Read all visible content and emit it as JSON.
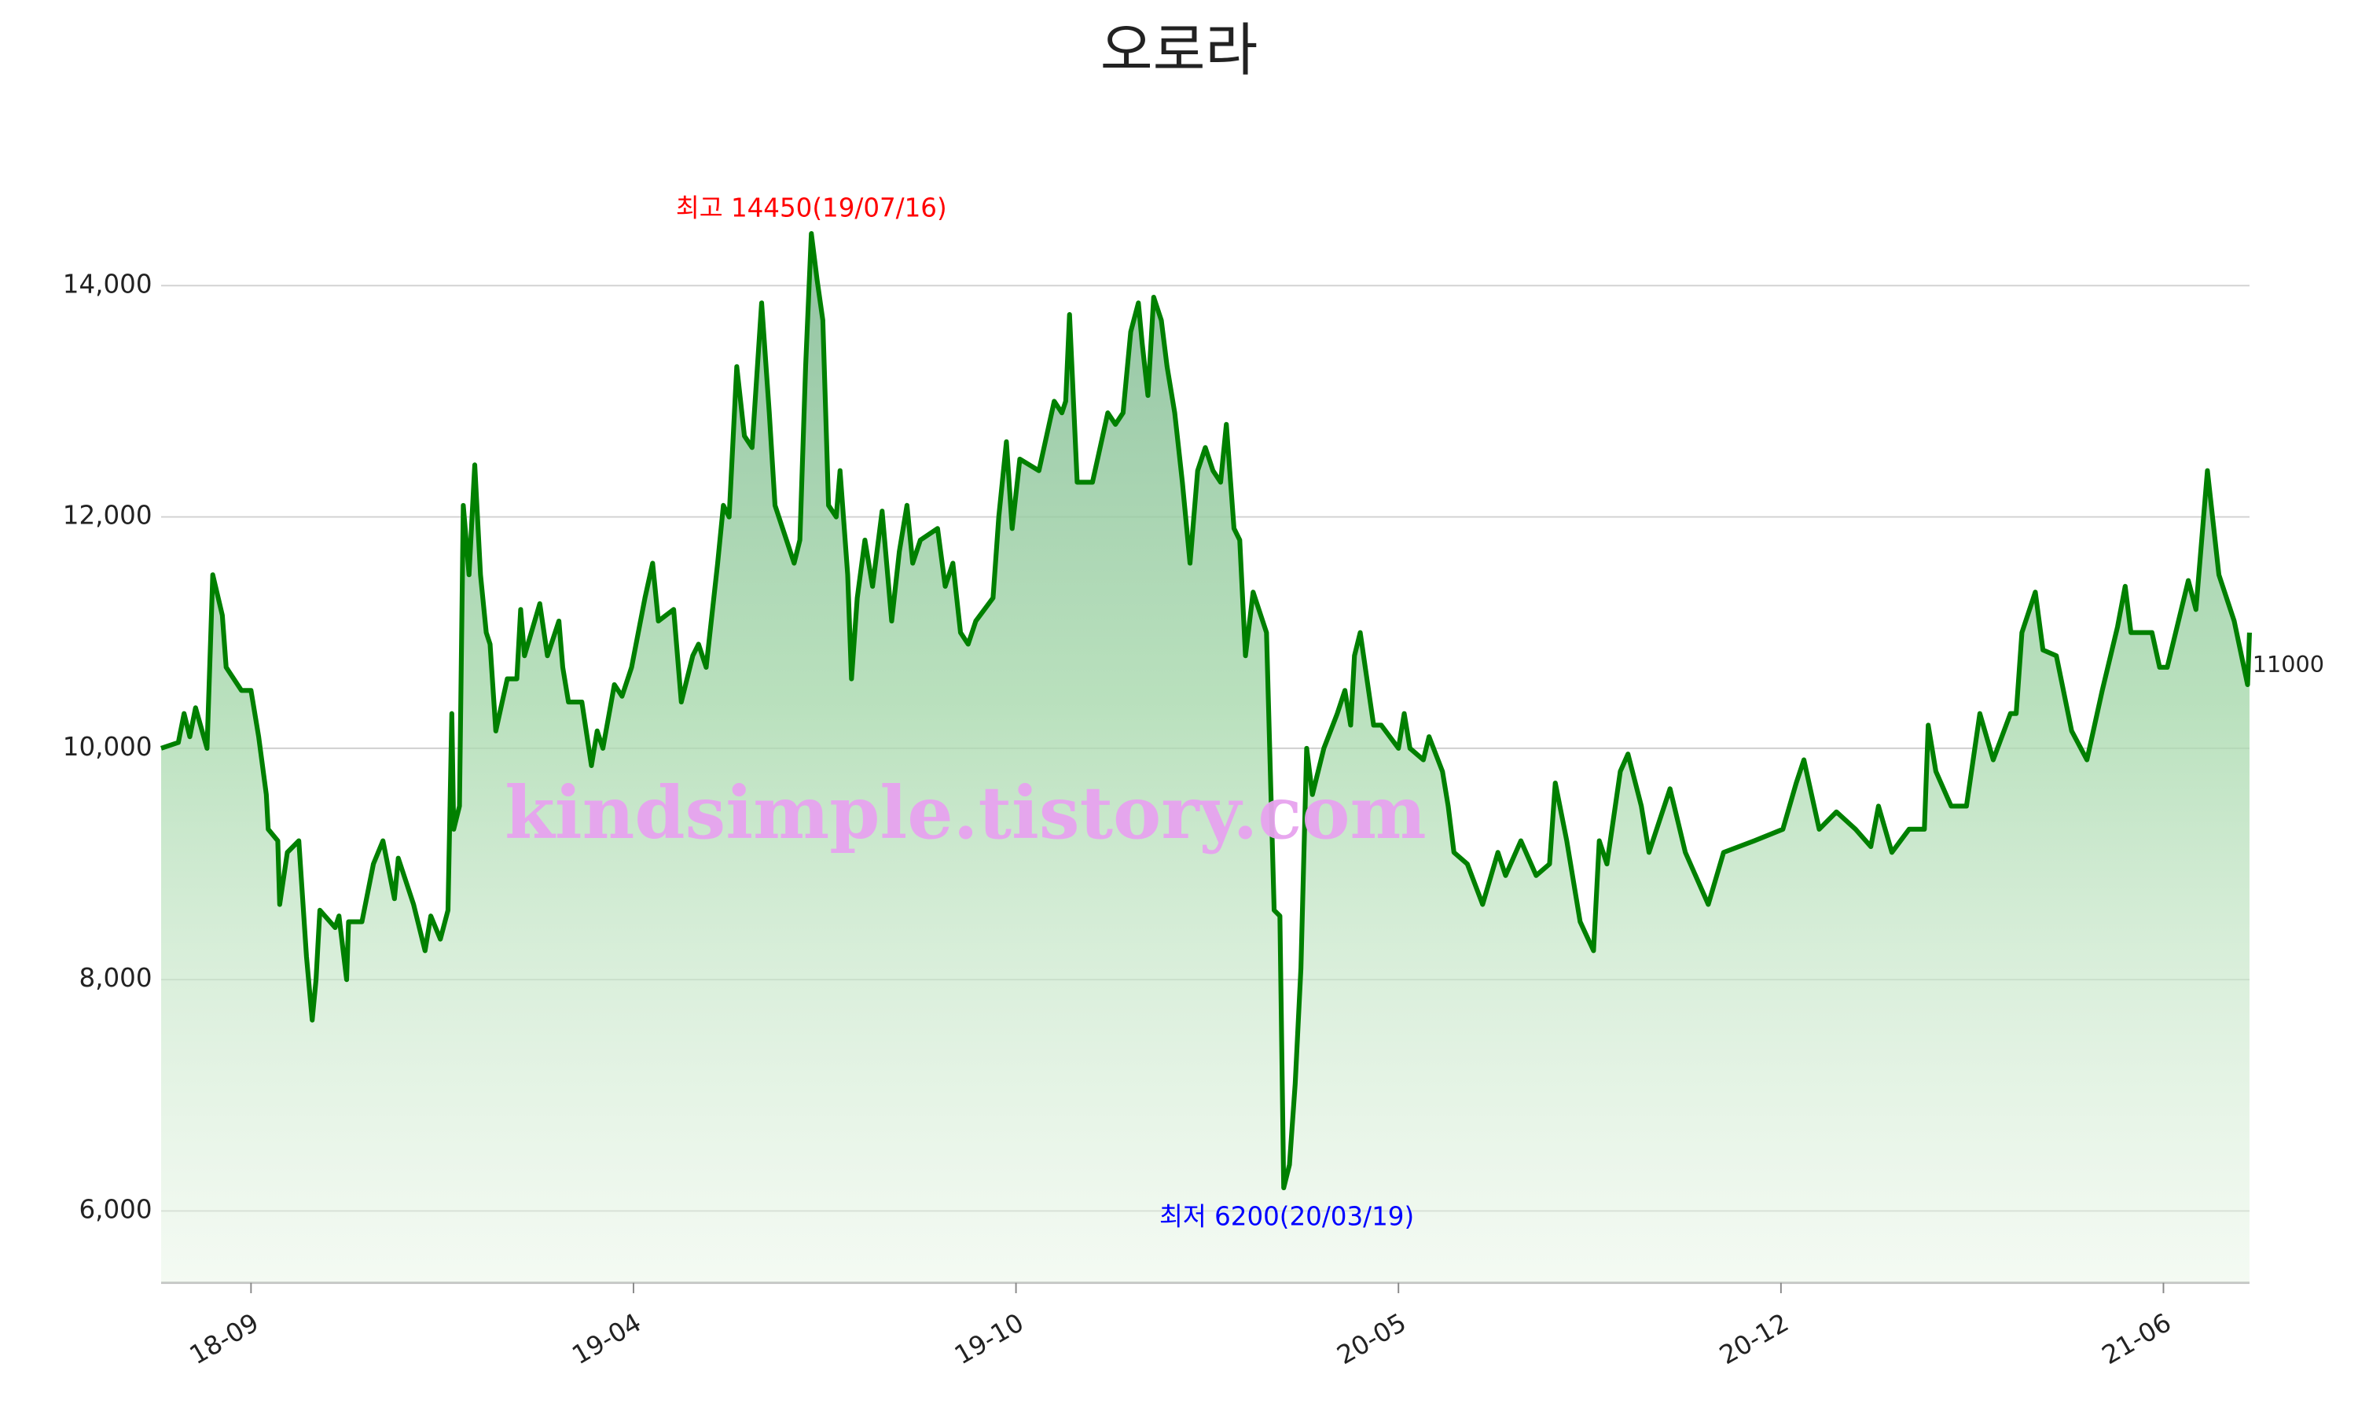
{
  "chart_data": {
    "type": "area",
    "title": "오로라",
    "watermark": "kindsimple.tistory.com",
    "grid": true,
    "annotations": {
      "high": {
        "text": "최고 14450(19/07/16)",
        "color": "#ff0000"
      },
      "low": {
        "text": "최저 6200(20/03/19)",
        "color": "#0000ff"
      }
    },
    "xlim": [
      221,
      1313
    ],
    "xticks": [
      {
        "value": 268,
        "label": "18-09"
      },
      {
        "value": 468,
        "label": "19-04"
      },
      {
        "value": 668,
        "label": "19-10"
      },
      {
        "value": 868,
        "label": "20-05"
      },
      {
        "value": 1068,
        "label": "20-12"
      },
      {
        "value": 1268,
        "label": "21-06"
      }
    ],
    "ylim": [
      5380,
      14870
    ],
    "yticks": [
      {
        "value": 6000,
        "label": "6,000"
      },
      {
        "value": 8000,
        "label": "8,000"
      },
      {
        "value": 10000,
        "label": "10,000"
      },
      {
        "value": 12000,
        "label": "12,000"
      },
      {
        "value": 14000,
        "label": "14,000"
      }
    ],
    "x": [
      221,
      230,
      233,
      236,
      239,
      245,
      248,
      253,
      255,
      263,
      268,
      272,
      276,
      277,
      282,
      283,
      287,
      293,
      295,
      297,
      300,
      302,
      304,
      312,
      314,
      318,
      319,
      326,
      332,
      337,
      343,
      345,
      353,
      359,
      362,
      367,
      371,
      373,
      374,
      377,
      379,
      382,
      385,
      388,
      391,
      393,
      396,
      402,
      407,
      409,
      411,
      419,
      423,
      429,
      431,
      434,
      441,
      446,
      449,
      452,
      458,
      462,
      467,
      474,
      478,
      481,
      489,
      493,
      499,
      502,
      506,
      512,
      515,
      518,
      522,
      526,
      530,
      532,
      535,
      539,
      542,
      548,
      552,
      555,
      558,
      561,
      564,
      567,
      570,
      574,
      576,
      580,
      582,
      585,
      589,
      593,
      598,
      603,
      607,
      611,
      614,
      618,
      627,
      631,
      635,
      639,
      643,
      647,
      656,
      659,
      663,
      666,
      670,
      680,
      688,
      692,
      694,
      696,
      700,
      708,
      716,
      720,
      724,
      728,
      732,
      734,
      737,
      740,
      744,
      747,
      751,
      755,
      759,
      763,
      767,
      771,
      775,
      778,
      782,
      785,
      788,
      792,
      799,
      803,
      806,
      808,
      811,
      814,
      817,
      820,
      823,
      829,
      836,
      840,
      843,
      845,
      848,
      855,
      859,
      868,
      871,
      874,
      881,
      884,
      891,
      894,
      897,
      904,
      912,
      920,
      924,
      932,
      940,
      947,
      950,
      956,
      963,
      970,
      973,
      977,
      984,
      988,
      995,
      999,
      1010,
      1018,
      1030,
      1038,
      1054,
      1069,
      1076,
      1080,
      1088,
      1097,
      1107,
      1115,
      1119,
      1126,
      1135,
      1143,
      1145,
      1149,
      1157,
      1165,
      1172,
      1179,
      1188,
      1191,
      1194,
      1201,
      1205,
      1212,
      1220,
      1228,
      1236,
      1244,
      1248,
      1251,
      1262,
      1266,
      1270,
      1281,
      1285,
      1291,
      1297,
      1305,
      1312,
      1313
    ],
    "series": [
      {
        "color": "#008000",
        "values": [
          10000,
          10050,
          10300,
          10100,
          10350,
          10000,
          11500,
          11150,
          10700,
          10500,
          10500,
          10100,
          9600,
          9300,
          9200,
          8650,
          9100,
          9200,
          8700,
          8200,
          7650,
          8000,
          8600,
          8450,
          8550,
          8000,
          8500,
          8500,
          9000,
          9200,
          8700,
          9050,
          8650,
          8250,
          8550,
          8350,
          8600,
          10300,
          9300,
          9500,
          12100,
          11500,
          12450,
          11500,
          11000,
          10900,
          10150,
          10600,
          10600,
          11200,
          10800,
          11250,
          10800,
          11100,
          10700,
          10400,
          10400,
          9850,
          10150,
          10000,
          10550,
          10450,
          10700,
          11300,
          11600,
          11100,
          11200,
          10400,
          10800,
          10900,
          10700,
          11600,
          12100,
          12000,
          13300,
          12700,
          12600,
          13100,
          13850,
          12900,
          12100,
          11800,
          11600,
          11800,
          13300,
          14450,
          14050,
          13700,
          12100,
          12000,
          12400,
          11500,
          10600,
          11300,
          11800,
          11400,
          12050,
          11100,
          11700,
          12100,
          11600,
          11800,
          11900,
          11400,
          11600,
          11000,
          10900,
          11100,
          11300,
          12000,
          12650,
          11900,
          12500,
          12400,
          13000,
          12900,
          13000,
          13750,
          12300,
          12300,
          12900,
          12800,
          12900,
          13600,
          13850,
          13500,
          13050,
          13900,
          13700,
          13300,
          12900,
          12300,
          11600,
          12400,
          12600,
          12400,
          12300,
          12800,
          11900,
          11800,
          10800,
          11350,
          11000,
          8600,
          8550,
          6200,
          6400,
          7100,
          8100,
          10000,
          9600,
          10000,
          10300,
          10500,
          10200,
          10800,
          11000,
          10200,
          10200,
          10000,
          10300,
          10000,
          9900,
          10100,
          9800,
          9500,
          9100,
          9000,
          8650,
          9100,
          8900,
          9200,
          8900,
          9000,
          9700,
          9200,
          8500,
          8250,
          9200,
          9000,
          9800,
          9950,
          9500,
          9100,
          9650,
          9100,
          8650,
          9100,
          9200,
          9300,
          9700,
          9900,
          9300,
          9450,
          9300,
          9150,
          9500,
          9100,
          9300,
          9300,
          10200,
          9800,
          9500,
          9500,
          10300,
          9900,
          10300,
          10300,
          11000,
          11350,
          10850,
          10800,
          10150,
          9900,
          10500,
          11050,
          11400,
          11000,
          11000,
          10700,
          10700,
          11450,
          11200,
          12400,
          11500,
          11100,
          10550,
          11000
        ]
      }
    ]
  }
}
